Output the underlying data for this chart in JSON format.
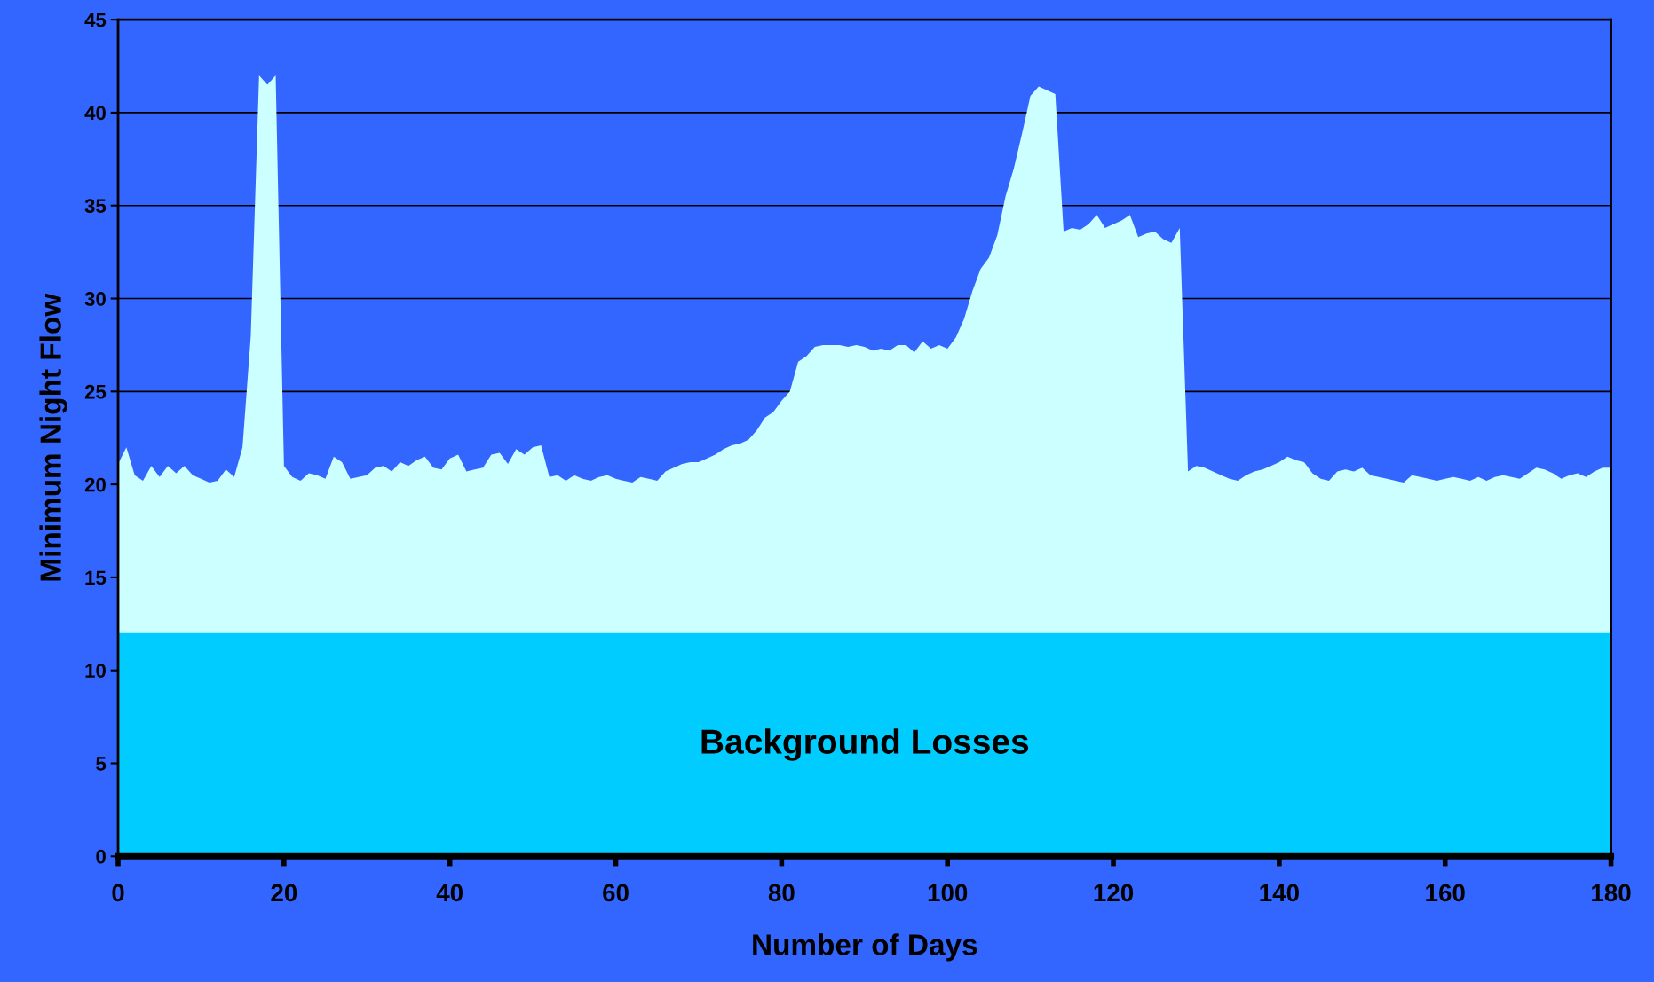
{
  "chart_data": {
    "type": "area",
    "xlabel": "Number of Days",
    "ylabel": "Minimum Night Flow",
    "xlim": [
      0,
      180
    ],
    "xticks": [
      0,
      20,
      40,
      60,
      80,
      100,
      120,
      140,
      160,
      180
    ],
    "ylim": [
      0,
      45
    ],
    "yticks": [
      0,
      5,
      10,
      15,
      20,
      25,
      30,
      35,
      40,
      45
    ],
    "grid": "y",
    "legend": false,
    "series": [
      {
        "color": "#ccffff",
        "x": [
          0,
          1,
          2,
          3,
          4,
          5,
          6,
          7,
          8,
          9,
          10,
          11,
          12,
          13,
          14,
          15,
          16,
          17,
          18,
          19,
          20,
          21,
          22,
          23,
          24,
          25,
          26,
          27,
          28,
          29,
          30,
          31,
          32,
          33,
          34,
          35,
          36,
          37,
          38,
          39,
          40,
          41,
          42,
          43,
          44,
          45,
          46,
          47,
          48,
          49,
          50,
          51,
          52,
          53,
          54,
          55,
          56,
          57,
          58,
          59,
          60,
          61,
          62,
          63,
          64,
          65,
          66,
          67,
          68,
          69,
          70,
          71,
          72,
          73,
          74,
          75,
          76,
          77,
          78,
          79,
          80,
          81,
          82,
          83,
          84,
          85,
          86,
          87,
          88,
          89,
          90,
          91,
          92,
          93,
          94,
          95,
          96,
          97,
          98,
          99,
          100,
          101,
          102,
          103,
          104,
          105,
          106,
          107,
          108,
          109,
          110,
          111,
          112,
          113,
          114,
          115,
          116,
          117,
          118,
          119,
          120,
          121,
          122,
          123,
          124,
          125,
          126,
          127,
          128,
          129,
          130,
          131,
          132,
          133,
          134,
          135,
          136,
          137,
          138,
          139,
          140,
          141,
          142,
          143,
          144,
          145,
          146,
          147,
          148,
          149,
          150,
          151,
          152,
          153,
          154,
          155,
          156,
          157,
          158,
          159,
          160,
          161,
          162,
          163,
          164,
          165,
          166,
          167,
          168,
          169,
          170,
          171,
          172,
          173,
          174,
          175,
          176,
          177,
          178,
          179,
          180
        ],
        "values": [
          21.1,
          22.0,
          20.5,
          20.2,
          21.0,
          20.4,
          21.0,
          20.6,
          21.0,
          20.5,
          20.3,
          20.1,
          20.2,
          20.8,
          20.4,
          22.0,
          28.0,
          42.0,
          41.5,
          42.0,
          21.0,
          20.4,
          20.2,
          20.6,
          20.5,
          20.3,
          21.5,
          21.2,
          20.3,
          20.4,
          20.5,
          20.9,
          21.0,
          20.7,
          21.2,
          21.0,
          21.3,
          21.5,
          20.9,
          20.8,
          21.4,
          21.6,
          20.7,
          20.8,
          20.9,
          21.6,
          21.7,
          21.1,
          21.9,
          21.6,
          22.0,
          22.1,
          20.4,
          20.5,
          20.2,
          20.5,
          20.3,
          20.2,
          20.4,
          20.5,
          20.3,
          20.2,
          20.1,
          20.4,
          20.3,
          20.2,
          20.7,
          20.9,
          21.1,
          21.2,
          21.2,
          21.4,
          21.6,
          21.9,
          22.1,
          22.2,
          22.4,
          22.9,
          23.6,
          23.9,
          24.5,
          25.0,
          26.6,
          26.9,
          27.4,
          27.5,
          27.5,
          27.5,
          27.4,
          27.5,
          27.4,
          27.2,
          27.3,
          27.2,
          27.5,
          27.5,
          27.1,
          27.7,
          27.3,
          27.5,
          27.3,
          27.9,
          28.9,
          30.4,
          31.6,
          32.2,
          33.4,
          35.5,
          37.0,
          38.9,
          40.9,
          41.4,
          41.2,
          41.0,
          33.6,
          33.8,
          33.7,
          34.0,
          34.5,
          33.8,
          34.0,
          34.2,
          34.5,
          33.3,
          33.5,
          33.6,
          33.2,
          33.0,
          33.8,
          20.7,
          21.0,
          20.9,
          20.7,
          20.5,
          20.3,
          20.2,
          20.5,
          20.7,
          20.8,
          21.0,
          21.2,
          21.5,
          21.3,
          21.2,
          20.6,
          20.3,
          20.2,
          20.7,
          20.8,
          20.7,
          20.9,
          20.5,
          20.4,
          20.3,
          20.2,
          20.1,
          20.5,
          20.4,
          20.3,
          20.2,
          20.3,
          20.4,
          20.3,
          20.2,
          20.4,
          20.2,
          20.4,
          20.5,
          20.4,
          20.3,
          20.6,
          20.9,
          20.8,
          20.6,
          20.3,
          20.5,
          20.6,
          20.4,
          20.7,
          20.9,
          20.9
        ]
      },
      {
        "name": "Background Losses",
        "color": "#00ccff",
        "x": [
          0,
          180
        ],
        "values": [
          12,
          12
        ]
      }
    ]
  }
}
